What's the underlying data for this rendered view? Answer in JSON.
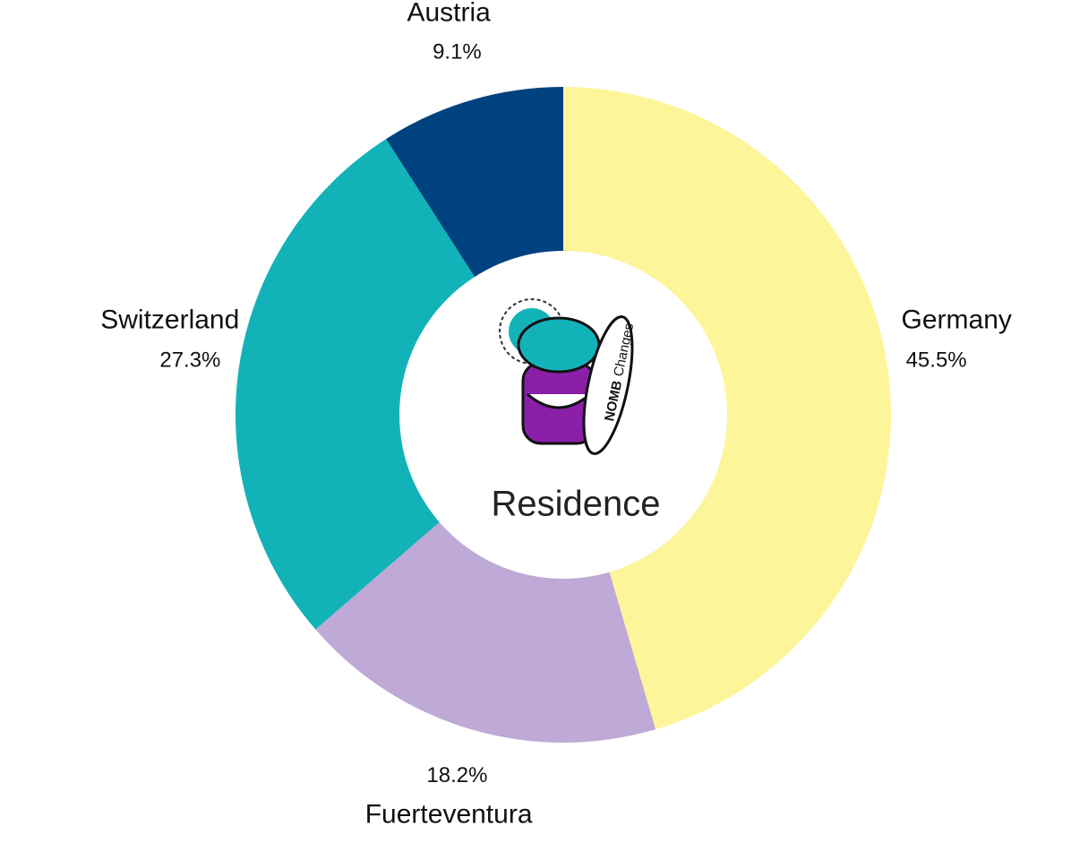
{
  "chart_data": {
    "type": "donut",
    "center_label": "Residence",
    "categories": [
      "Germany",
      "Fuerteventura",
      "Switzerland",
      "Austria"
    ],
    "values": [
      45.5,
      18.2,
      27.3,
      9.1
    ],
    "value_labels": [
      "45.5%",
      "18.2%",
      "27.3%",
      "9.1%"
    ],
    "colors": [
      "#fdf59a",
      "#bfa9d6",
      "#12b3b8",
      "#00427f"
    ]
  },
  "logo": {
    "brand": "NOMB",
    "tagline": "Changes"
  }
}
